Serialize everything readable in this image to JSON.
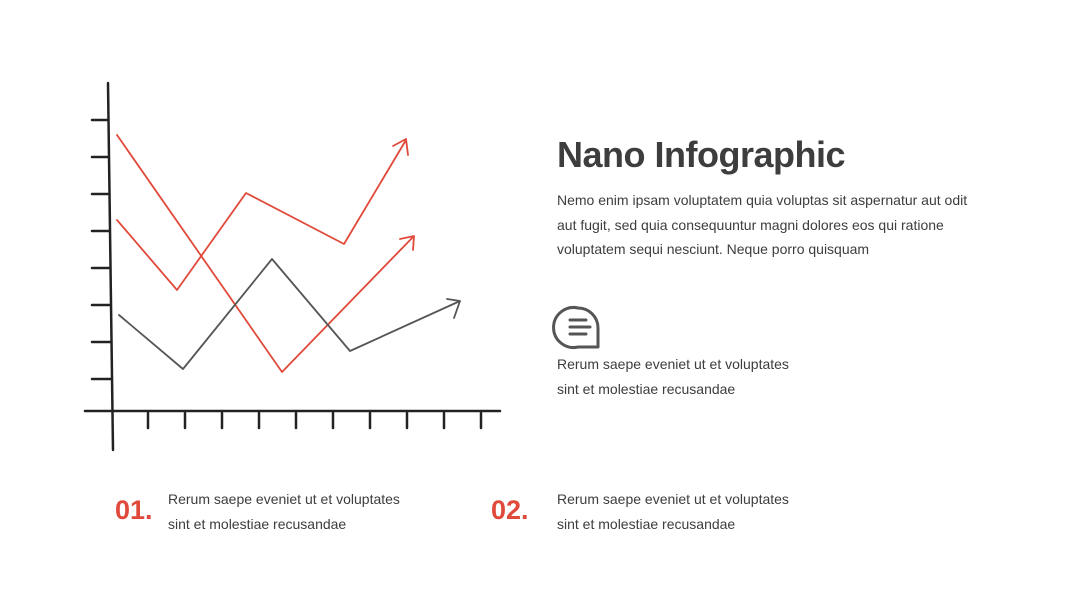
{
  "title": "Nano Infographic",
  "description": "Nemo enim ipsam voluptatem quia voluptas sit aspernatur aut odit aut fugit, sed quia consequuntur magni dolores eos qui ratione voluptatem sequi nesciunt. Neque porro quisquam",
  "note": "Rerum saepe eveniet ut et voluptates sint et molestiae recusandae",
  "items": [
    {
      "number": "01.",
      "text": "Rerum saepe eveniet ut et voluptates sint et molestiae recusandae"
    },
    {
      "number": "02.",
      "text": "Rerum saepe eveniet ut et voluptates sint et molestiae recusandae"
    }
  ]
}
